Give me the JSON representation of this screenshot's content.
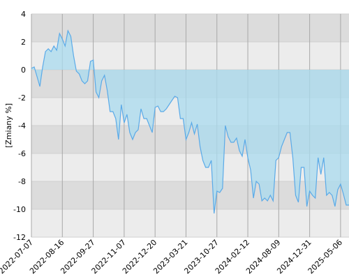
{
  "chart_data": {
    "type": "area",
    "y_label": "[Zmiany %]",
    "categories": [
      "2022-07-07",
      null,
      null,
      null,
      null,
      null,
      null,
      null,
      null,
      null,
      null,
      "2022-08-16",
      null,
      null,
      null,
      null,
      null,
      null,
      null,
      null,
      null,
      null,
      "2022-09-27",
      null,
      null,
      null,
      null,
      null,
      null,
      null,
      null,
      null,
      null,
      "2022-11-07",
      null,
      null,
      null,
      null,
      null,
      null,
      null,
      null,
      null,
      null,
      "2022-12-20",
      null,
      null,
      null,
      null,
      null,
      null,
      null,
      null,
      null,
      null,
      "2023-03-21",
      null,
      null,
      null,
      null,
      null,
      null,
      null,
      null,
      null,
      null,
      "2023-10-27",
      null,
      null,
      null,
      null,
      null,
      null,
      null,
      null,
      null,
      null,
      "2024-02-12",
      null,
      null,
      null,
      null,
      null,
      null,
      null,
      null,
      null,
      null,
      "2024-08-09",
      null,
      null,
      null,
      null,
      null,
      null,
      null,
      null,
      null,
      null,
      "2024-12-31",
      null,
      null,
      null,
      null,
      null,
      null,
      null,
      null,
      null,
      null,
      "2025-05-06",
      null,
      null,
      null
    ],
    "values": [
      0.1,
      0.2,
      -0.5,
      -1.2,
      0.2,
      1.3,
      1.5,
      1.3,
      1.7,
      1.4,
      2.6,
      2.2,
      1.7,
      2.8,
      2.4,
      1.0,
      -0.1,
      -0.3,
      -0.8,
      -1.0,
      -0.8,
      0.6,
      0.7,
      -1.6,
      -2.0,
      -0.8,
      -0.4,
      -1.5,
      -3.0,
      -3.0,
      -3.5,
      -5.0,
      -2.5,
      -3.8,
      -3.2,
      -4.5,
      -5.0,
      -4.5,
      -4.3,
      -2.8,
      -3.5,
      -3.5,
      -4.0,
      -4.5,
      -2.7,
      -2.6,
      -3.0,
      -3.0,
      -2.8,
      -2.5,
      -2.2,
      -1.9,
      -2.0,
      -3.5,
      -3.5,
      -5.0,
      -4.5,
      -3.8,
      -4.6,
      -3.9,
      -5.5,
      -6.5,
      -7.0,
      -7.0,
      -6.5,
      -10.3,
      -8.7,
      -8.8,
      -8.5,
      -4.0,
      -4.8,
      -5.2,
      -5.2,
      -4.9,
      -5.8,
      -6.2,
      -5.0,
      -6.3,
      -7.2,
      -9.2,
      -8.0,
      -8.2,
      -9.4,
      -9.2,
      -9.4,
      -9.0,
      -9.4,
      -6.5,
      -6.3,
      -5.5,
      -5.0,
      -4.5,
      -4.5,
      -6.3,
      -9.0,
      -9.5,
      -7.0,
      -7.0,
      -9.8,
      -8.7,
      -9.0,
      -9.2,
      -6.3,
      -7.5,
      -6.3,
      -9.0,
      -8.8,
      -9.0,
      -9.8,
      -8.6,
      -8.2,
      -8.9,
      -9.7,
      -9.7
    ],
    "color": "#5aaae8",
    "fill": "#a9dbef",
    "ylim": [
      -12,
      4
    ],
    "yticks": [
      -12,
      -10,
      -8,
      -6,
      -4,
      -2,
      0,
      2,
      4
    ],
    "grid": true
  }
}
